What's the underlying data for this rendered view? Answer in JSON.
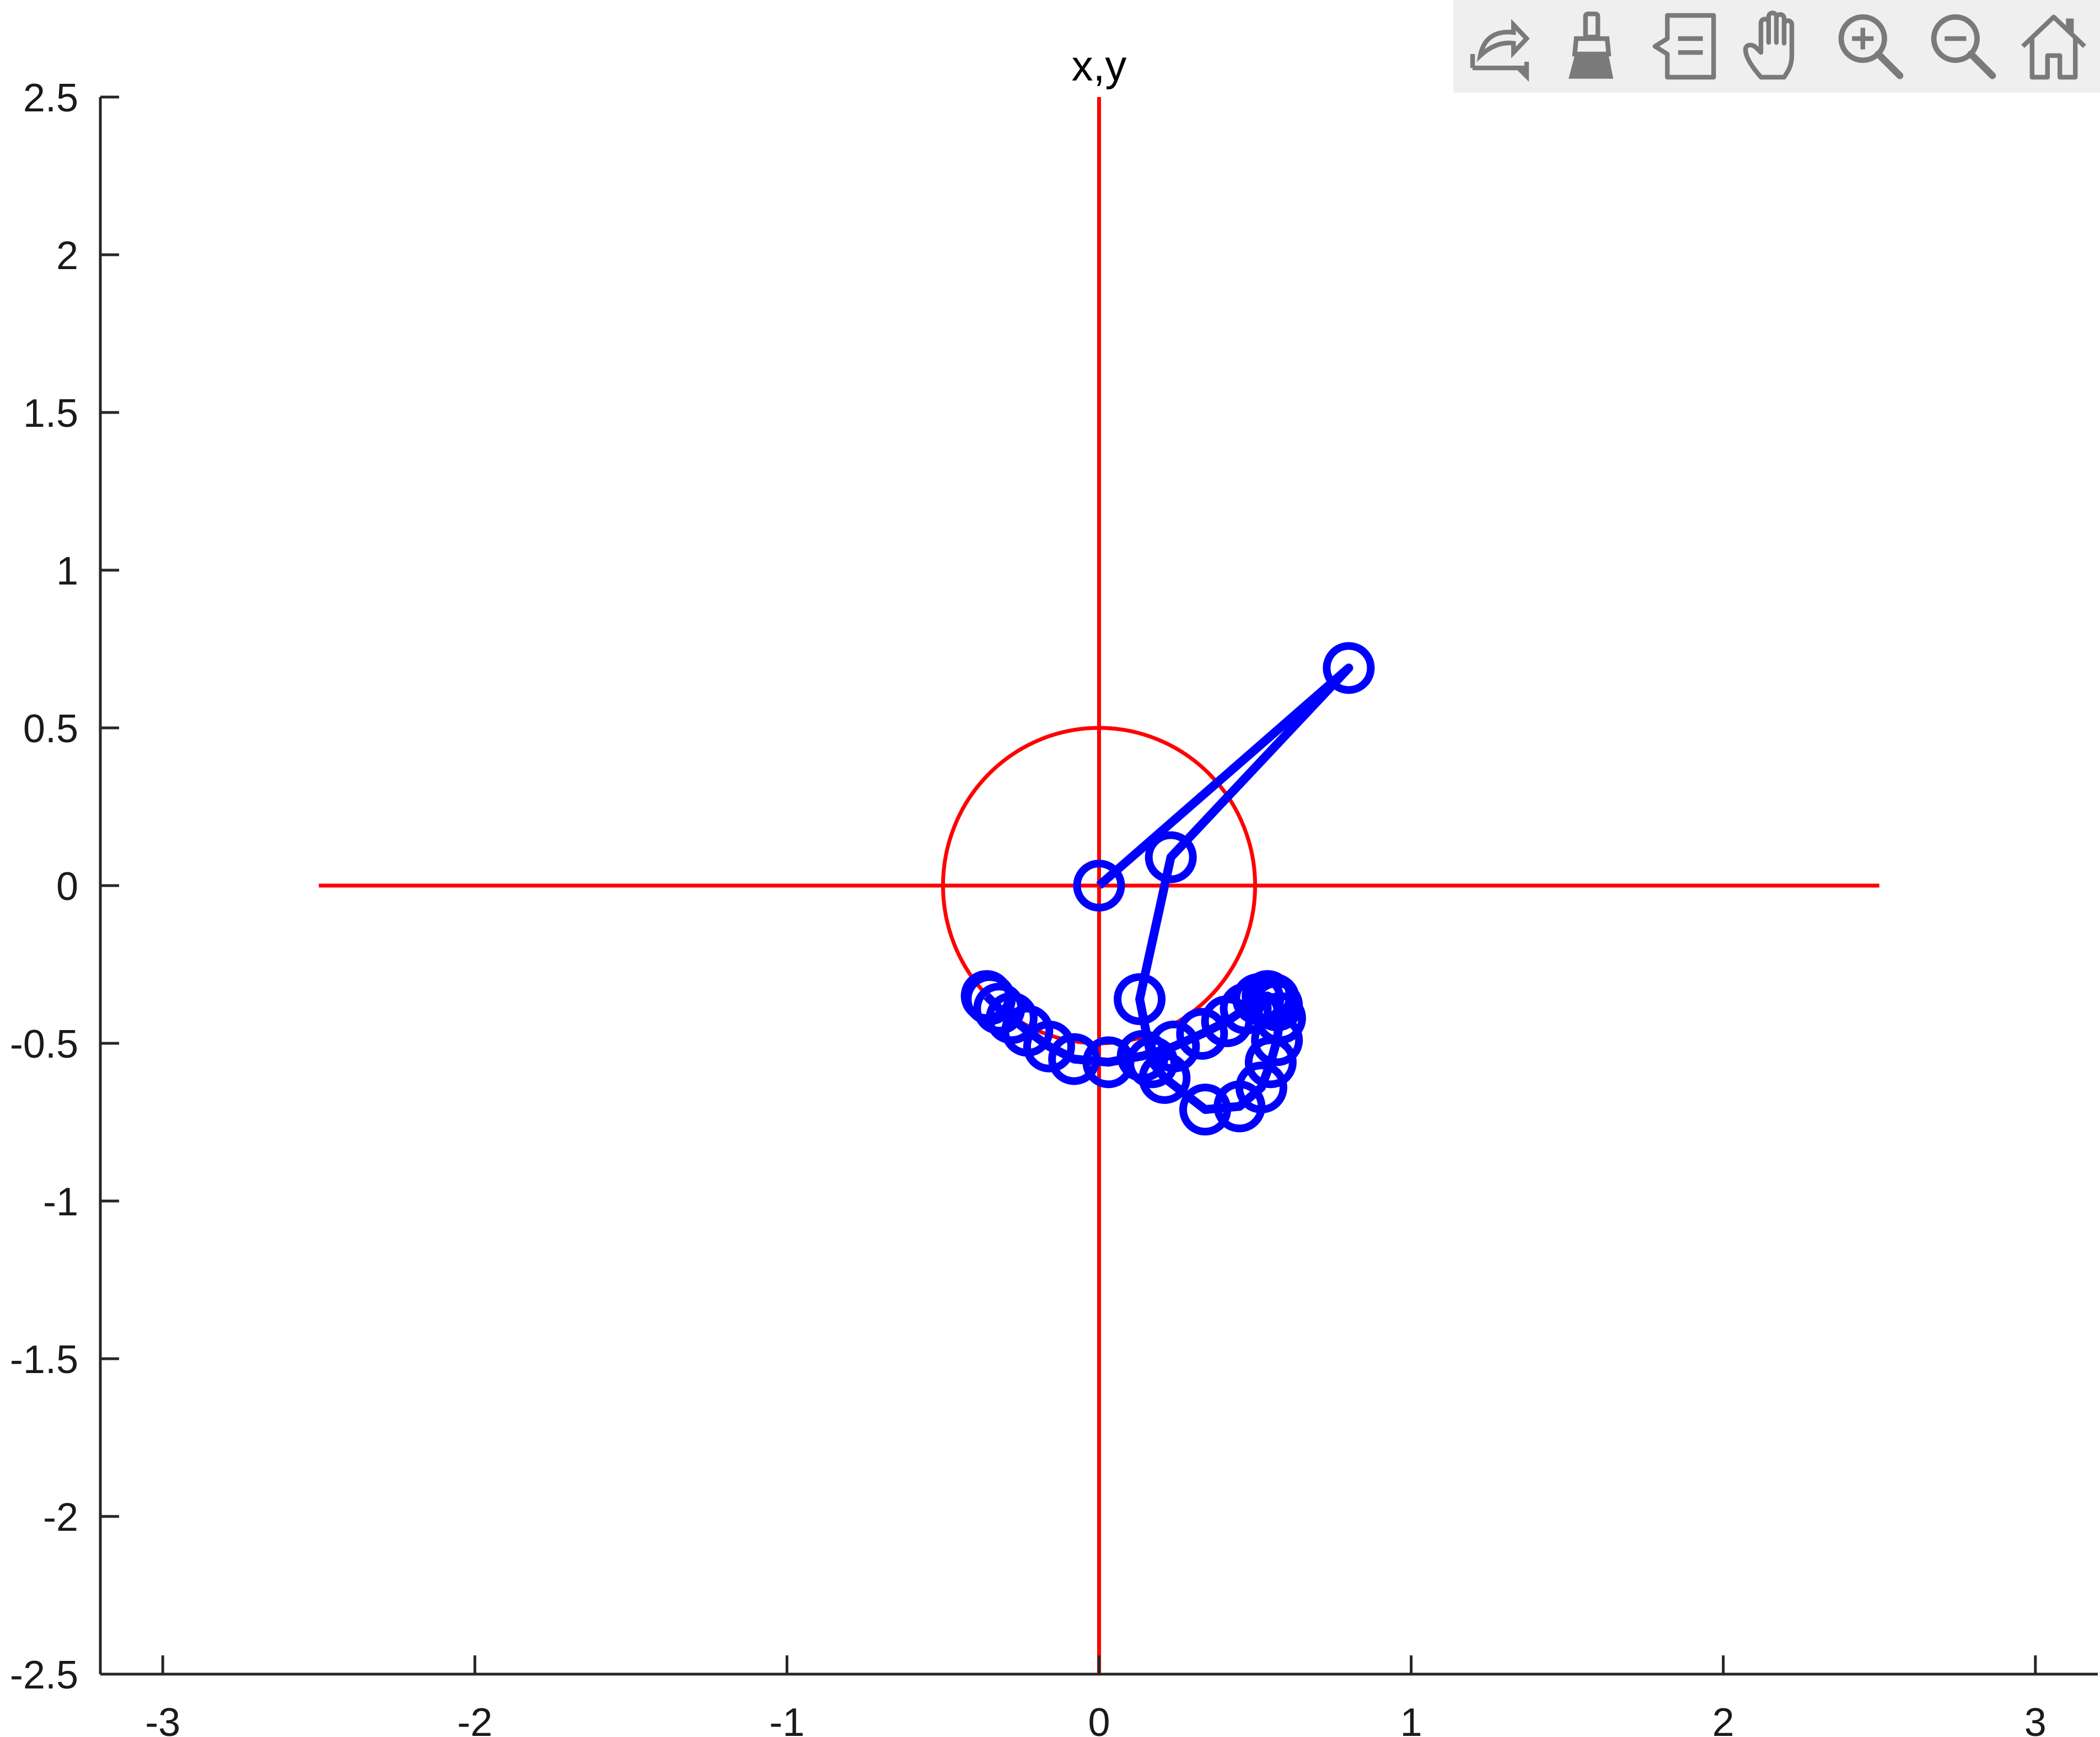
{
  "toolbar": {
    "icons": [
      "export-icon",
      "data-brush-icon",
      "data-tips-icon",
      "pan-hand-icon",
      "zoom-in-icon",
      "zoom-out-icon",
      "restore-view-home-icon"
    ]
  },
  "chart_data": {
    "type": "line",
    "title": "x,y",
    "xlabel": "",
    "ylabel": "",
    "xlim": [
      -3.2,
      3.2
    ],
    "ylim": [
      -2.5,
      2.5
    ],
    "xticks": [
      -3,
      -2,
      -1,
      0,
      1,
      2,
      3
    ],
    "xtick_labels": [
      "-3",
      "-2",
      "-1",
      "0",
      "1",
      "2",
      "3"
    ],
    "yticks": [
      2.5,
      2,
      1.5,
      1,
      0.5,
      0,
      -0.5,
      -1,
      -1.5,
      -2,
      -2.5
    ],
    "ytick_labels": [
      "2.5",
      "2",
      "1.5",
      "1",
      "0.5",
      "0",
      "-0.5",
      "-1",
      "-1.5",
      "-2",
      "-2.5"
    ],
    "grid": false,
    "colors": {
      "reference": "#ff0000",
      "trajectory": "#0000ff"
    },
    "reference": {
      "hline": {
        "y": 0,
        "x": [
          -2.5,
          2.5
        ]
      },
      "vline": {
        "x": 0,
        "y": [
          -2.5,
          2.5
        ]
      },
      "circle": {
        "cx": 0,
        "cy": 0,
        "r": 0.5
      }
    },
    "series": [
      {
        "marker": "circle",
        "x": [
          0,
          0.8,
          0.23,
          0.13,
          0.17,
          0.21,
          0.34,
          0.45,
          0.52,
          0.55,
          0.57,
          0.58,
          0.57,
          0.56,
          0.54,
          0.51,
          0.47,
          0.41,
          0.33,
          0.24,
          0.14,
          0.03,
          -0.08,
          -0.16,
          -0.23,
          -0.28,
          -0.32,
          -0.35,
          -0.36
        ],
        "y": [
          0,
          0.69,
          0.09,
          -0.36,
          -0.56,
          -0.61,
          -0.71,
          -0.7,
          -0.64,
          -0.56,
          -0.49,
          -0.42,
          -0.38,
          -0.36,
          -0.35,
          -0.36,
          -0.39,
          -0.43,
          -0.47,
          -0.51,
          -0.54,
          -0.56,
          -0.55,
          -0.51,
          -0.46,
          -0.42,
          -0.39,
          -0.36,
          -0.35
        ]
      }
    ]
  }
}
